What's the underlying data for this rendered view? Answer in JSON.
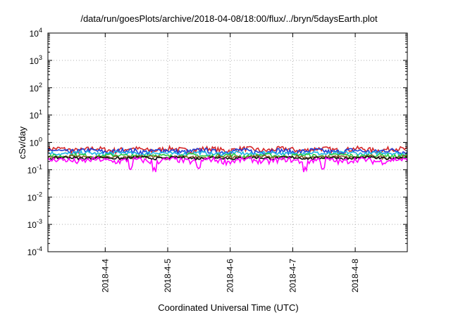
{
  "chart_data": {
    "type": "line",
    "title": "/data/run/goesPlots/archive/2018-04-08/18:00/flux/../bryn/5daysEarth.plot",
    "xlabel": "Coordinated Universal Time (UTC)",
    "ylabel": "cSv/day",
    "yscale": "log",
    "ylim": [
      0.0001,
      10000
    ],
    "y_ticks": [
      {
        "base": "10",
        "exp": "-4"
      },
      {
        "base": "10",
        "exp": "-3"
      },
      {
        "base": "10",
        "exp": "-2"
      },
      {
        "base": "10",
        "exp": "-1"
      },
      {
        "base": "10",
        "exp": "0"
      },
      {
        "base": "10",
        "exp": "1"
      },
      {
        "base": "10",
        "exp": "2"
      },
      {
        "base": "10",
        "exp": "3"
      },
      {
        "base": "10",
        "exp": "4"
      }
    ],
    "xlim": [
      "2018-04-03T02:00",
      "2018-04-08T20:00"
    ],
    "x_ticks": [
      {
        "label": "2018-4-4",
        "x": "2018-04-04T00:00"
      },
      {
        "label": "2018-4-5",
        "x": "2018-04-05T00:00"
      },
      {
        "label": "2018-4-6",
        "x": "2018-04-06T00:00"
      },
      {
        "label": "2018-4-7",
        "x": "2018-04-07T00:00"
      },
      {
        "label": "2018-4-8",
        "x": "2018-04-08T00:00"
      }
    ],
    "grid": true,
    "legend": "none",
    "series": [
      {
        "color": "#d62728",
        "level": 0.55,
        "amplitude": 0.12
      },
      {
        "color": "#1f3fd6",
        "level": 0.48,
        "amplitude": 0.1
      },
      {
        "color": "#1fb4e8",
        "level": 0.4,
        "amplitude": 0.06
      },
      {
        "color": "#2ecc40",
        "level": 0.33,
        "amplitude": 0.05
      },
      {
        "color": "#8b5a2b",
        "level": 0.29,
        "amplitude": 0.04
      },
      {
        "color": "#111111",
        "level": 0.27,
        "amplitude": 0.03
      },
      {
        "color": "#ff00ff",
        "level": 0.22,
        "amplitude": 0.05
      }
    ]
  }
}
